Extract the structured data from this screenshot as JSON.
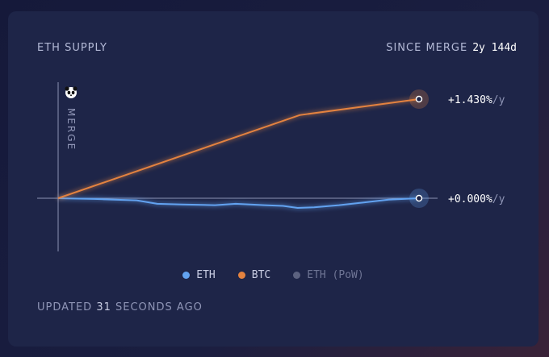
{
  "card": {
    "title": "ETH SUPPLY",
    "since_label": "SINCE MERGE",
    "since_value": "2y 144d",
    "updated_prefix": "UPDATED",
    "updated_number": "31",
    "updated_suffix": "SECONDS AGO"
  },
  "colors": {
    "eth": "#62a2f0",
    "btc": "#e3823f",
    "eth_pow": "#5c6280",
    "baseline": "#8c93b4",
    "background": "#1e2548"
  },
  "icons": {
    "merge": "panda-icon"
  },
  "chart_data": {
    "type": "line",
    "title": "ETH SUPPLY",
    "merge_label": "MERGE",
    "x_unit": "days since merge",
    "x_range": [
      0,
      874
    ],
    "ylim": [
      -1.6,
      1.8
    ],
    "series": [
      {
        "name": "ETH",
        "end_label": "+0.000%/y",
        "points": [
          [
            0,
            0
          ],
          [
            87,
            -0.01
          ],
          [
            190,
            -0.03
          ],
          [
            240,
            -0.08
          ],
          [
            300,
            -0.09
          ],
          [
            380,
            -0.1
          ],
          [
            430,
            -0.08
          ],
          [
            500,
            -0.1
          ],
          [
            545,
            -0.11
          ],
          [
            580,
            -0.14
          ],
          [
            620,
            -0.13
          ],
          [
            680,
            -0.1
          ],
          [
            740,
            -0.06
          ],
          [
            800,
            -0.02
          ],
          [
            874,
            0
          ]
        ]
      },
      {
        "name": "BTC",
        "end_label": "+1.430%/y",
        "points": [
          [
            0,
            0
          ],
          [
            585,
            1.2
          ],
          [
            874,
            1.43
          ]
        ]
      },
      {
        "name": "ETH (PoW)",
        "points": []
      }
    ],
    "legend": [
      "ETH",
      "BTC",
      "ETH (PoW)"
    ],
    "legend_position": "bottom-center"
  }
}
